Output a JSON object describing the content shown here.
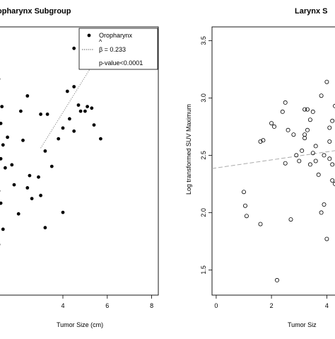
{
  "chart_data": [
    {
      "type": "scatter",
      "title": "opharynx Subgroup",
      "xlabel": "Tumor Size (cm)",
      "ylabel": "",
      "xlim": [
        1.1,
        8.3
      ],
      "ylim": [
        1.62,
        3.37
      ],
      "x_ticks": [
        4,
        6,
        8
      ],
      "x_tick_labels": [
        "4",
        "6",
        "8"
      ],
      "y_ticks": [],
      "marker": "filled-circle",
      "legend": {
        "placement": "top-right",
        "series_label": "Oropharynx",
        "beta_hat_symbol": "^",
        "beta_label": "β = 0.233",
        "pvalue_label": "p-value<0.0001"
      },
      "fit_line": {
        "style": "dotted",
        "intercept": 1.88,
        "slope": 0.233
      },
      "series": [
        {
          "name": "Oropharynx",
          "points": [
            [
              1.1,
              3.03
            ],
            [
              1.2,
              2.74
            ],
            [
              1.25,
              2.85
            ],
            [
              1.3,
              2.6
            ],
            [
              1.0,
              2.55
            ],
            [
              1.4,
              2.45
            ],
            [
              1.1,
              2.3
            ],
            [
              1.2,
              2.22
            ],
            [
              1.3,
              2.05
            ],
            [
              1.5,
              2.65
            ],
            [
              1.7,
              2.47
            ],
            [
              1.1,
              1.95
            ],
            [
              1.2,
              2.51
            ],
            [
              3.5,
              2.46
            ],
            [
              2.4,
              2.32
            ],
            [
              2.0,
              2.15
            ],
            [
              2.2,
              2.63
            ],
            [
              2.5,
              2.4
            ],
            [
              1.8,
              2.34
            ],
            [
              2.9,
              2.39
            ],
            [
              3.0,
              2.27
            ],
            [
              2.6,
              2.25
            ],
            [
              4.0,
              2.16
            ],
            [
              3.2,
              2.06
            ],
            [
              2.1,
              2.82
            ],
            [
              2.4,
              2.92
            ],
            [
              3.0,
              2.8
            ],
            [
              3.2,
              2.56
            ],
            [
              3.3,
              2.8
            ],
            [
              3.8,
              2.64
            ],
            [
              4.0,
              2.71
            ],
            [
              4.5,
              2.69
            ],
            [
              4.3,
              2.77
            ],
            [
              4.2,
              2.95
            ],
            [
              4.5,
              2.98
            ],
            [
              4.5,
              3.23
            ],
            [
              4.7,
              2.86
            ],
            [
              4.8,
              2.82
            ],
            [
              5.0,
              2.82
            ],
            [
              5.1,
              2.85
            ],
            [
              5.3,
              2.84
            ],
            [
              5.4,
              2.73
            ],
            [
              5.7,
              2.64
            ]
          ]
        }
      ]
    },
    {
      "type": "scatter",
      "title": "Larynx S",
      "xlabel": "Tumor Siz",
      "ylabel": "Log transformed SUV Maximum",
      "xlim": [
        -0.15,
        4.45
      ],
      "ylim": [
        1.28,
        3.62
      ],
      "x_ticks": [
        0,
        2,
        4
      ],
      "x_tick_labels": [
        "0",
        "2",
        "4"
      ],
      "y_ticks": [
        1.5,
        2.0,
        2.5,
        3.0,
        3.5
      ],
      "y_tick_labels": [
        "1.5",
        "2.0",
        "2.5",
        "3.0",
        "3.5"
      ],
      "marker": "open-circle",
      "fit_line": {
        "style": "dashed",
        "intercept": 2.39,
        "slope": 0.035
      },
      "series": [
        {
          "name": "",
          "points": [
            [
              1.0,
              2.18
            ],
            [
              1.05,
              2.06
            ],
            [
              1.1,
              1.97
            ],
            [
              1.6,
              1.9
            ],
            [
              1.6,
              2.62
            ],
            [
              1.7,
              2.63
            ],
            [
              2.0,
              2.78
            ],
            [
              2.1,
              2.75
            ],
            [
              2.5,
              2.96
            ],
            [
              2.2,
              1.41
            ],
            [
              2.4,
              2.88
            ],
            [
              2.6,
              2.72
            ],
            [
              2.8,
              2.68
            ],
            [
              2.9,
              2.5
            ],
            [
              3.0,
              2.45
            ],
            [
              2.5,
              2.43
            ],
            [
              2.7,
              1.94
            ],
            [
              3.1,
              2.54
            ],
            [
              3.2,
              2.65
            ],
            [
              3.2,
              2.68
            ],
            [
              3.3,
              2.72
            ],
            [
              3.5,
              2.52
            ],
            [
              3.4,
              2.42
            ],
            [
              3.6,
              2.45
            ],
            [
              3.3,
              2.9
            ],
            [
              3.4,
              2.81
            ],
            [
              3.5,
              2.88
            ],
            [
              3.2,
              2.9
            ],
            [
              3.8,
              3.02
            ],
            [
              3.6,
              2.58
            ],
            [
              3.7,
              2.33
            ],
            [
              3.8,
              2.0
            ],
            [
              3.9,
              2.07
            ],
            [
              4.0,
              1.77
            ],
            [
              4.1,
              2.47
            ],
            [
              3.9,
              2.5
            ],
            [
              4.2,
              2.28
            ],
            [
              4.1,
              2.74
            ],
            [
              4.2,
              2.8
            ],
            [
              4.3,
              2.25
            ],
            [
              4.3,
              2.93
            ],
            [
              4.1,
              2.62
            ],
            [
              4.4,
              2.56
            ],
            [
              4.4,
              2.67
            ],
            [
              4.0,
              3.14
            ],
            [
              4.2,
              2.42
            ]
          ]
        }
      ]
    }
  ]
}
